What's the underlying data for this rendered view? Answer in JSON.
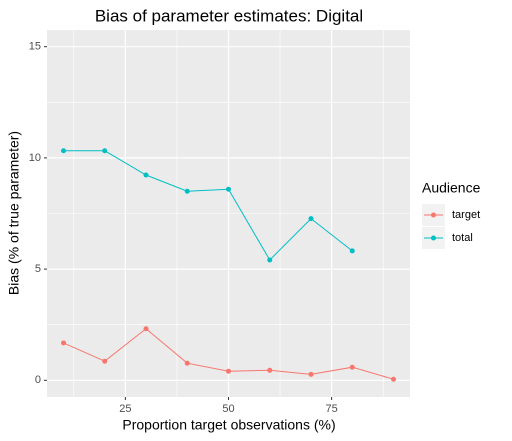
{
  "chart_data": {
    "type": "line",
    "title": "Bias of parameter estimates: Digital",
    "x_label": "Proportion target observations (%)",
    "y_label": "Bias (% of true parameter)",
    "legend_title": "Audience",
    "legend_position": "right",
    "grid": true,
    "x": [
      10,
      20,
      30,
      40,
      50,
      60,
      70,
      80,
      90
    ],
    "series": [
      {
        "name": "target",
        "color": "#F8766D",
        "values": [
          1.68,
          0.86,
          2.32,
          0.77,
          0.41,
          0.45,
          0.27,
          0.59,
          0.05
        ]
      },
      {
        "name": "total",
        "color": "#00BFC4",
        "values": [
          10.32,
          10.32,
          9.23,
          8.5,
          8.59,
          5.41,
          7.27,
          5.82,
          null
        ]
      }
    ],
    "xlim": [
      6,
      94
    ],
    "xticks": [
      25,
      50,
      75
    ],
    "xminor": [
      12.5,
      37.5,
      62.5,
      87.5
    ],
    "ylim": [
      -0.75,
      15.75
    ],
    "yticks": [
      0,
      5,
      10,
      15
    ],
    "yminor": [
      2.5,
      7.5,
      12.5
    ]
  }
}
